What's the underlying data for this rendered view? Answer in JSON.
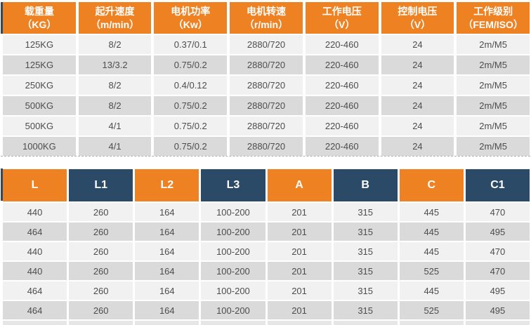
{
  "colors": {
    "orange": "#ee8122",
    "navy": "#2b4a68",
    "row_light": "#f1f1f1",
    "row_dark": "#dadada",
    "text": "#4d4d4d",
    "strip": "#32495f"
  },
  "spec_table": {
    "columns": [
      {
        "name": "载重量",
        "unit": "（KG）"
      },
      {
        "name": "起升速度",
        "unit": "（m/min）"
      },
      {
        "name": "电机功率",
        "unit": "（Kw）"
      },
      {
        "name": "电机转速",
        "unit": "（r/min）"
      },
      {
        "name": "工作电压",
        "unit": "（V）"
      },
      {
        "name": "控制电压",
        "unit": "（V）"
      },
      {
        "name": "工作级别",
        "unit": "（FEM/ISO）"
      }
    ],
    "rows": [
      [
        "125KG",
        "8/2",
        "0.37/0.1",
        "2880/720",
        "220-460",
        "24",
        "2m/M5"
      ],
      [
        "125KG",
        "13/3.2",
        "0.75/0.2",
        "2880/720",
        "220-460",
        "24",
        "2m/M5"
      ],
      [
        "250KG",
        "8/2",
        "0.4/0.12",
        "2880/720",
        "220-460",
        "24",
        "2m/M5"
      ],
      [
        "500KG",
        "8/2",
        "0.75/0.2",
        "2880/720",
        "220-460",
        "24",
        "2m/M5"
      ],
      [
        "500KG",
        "4/1",
        "0.75/0.2",
        "2880/720",
        "220-460",
        "24",
        "2m/M5"
      ],
      [
        "1000KG",
        "4/1",
        "0.75/0.2",
        "2880/720",
        "220-460",
        "24",
        "2m/M5"
      ]
    ]
  },
  "dimension_table": {
    "columns": [
      "L",
      "L1",
      "L2",
      "L3",
      "A",
      "B",
      "C",
      "C1"
    ],
    "rows": [
      [
        "440",
        "260",
        "164",
        "100-200",
        "201",
        "315",
        "445",
        "470"
      ],
      [
        "464",
        "260",
        "164",
        "100-200",
        "201",
        "315",
        "445",
        "495"
      ],
      [
        "440",
        "260",
        "164",
        "100-200",
        "201",
        "315",
        "445",
        "470"
      ],
      [
        "440",
        "260",
        "164",
        "100-200",
        "201",
        "315",
        "525",
        "470"
      ],
      [
        "464",
        "260",
        "164",
        "100-200",
        "201",
        "315",
        "445",
        "495"
      ],
      [
        "464",
        "260",
        "164",
        "100-200",
        "201",
        "315",
        "525",
        "495"
      ]
    ]
  }
}
